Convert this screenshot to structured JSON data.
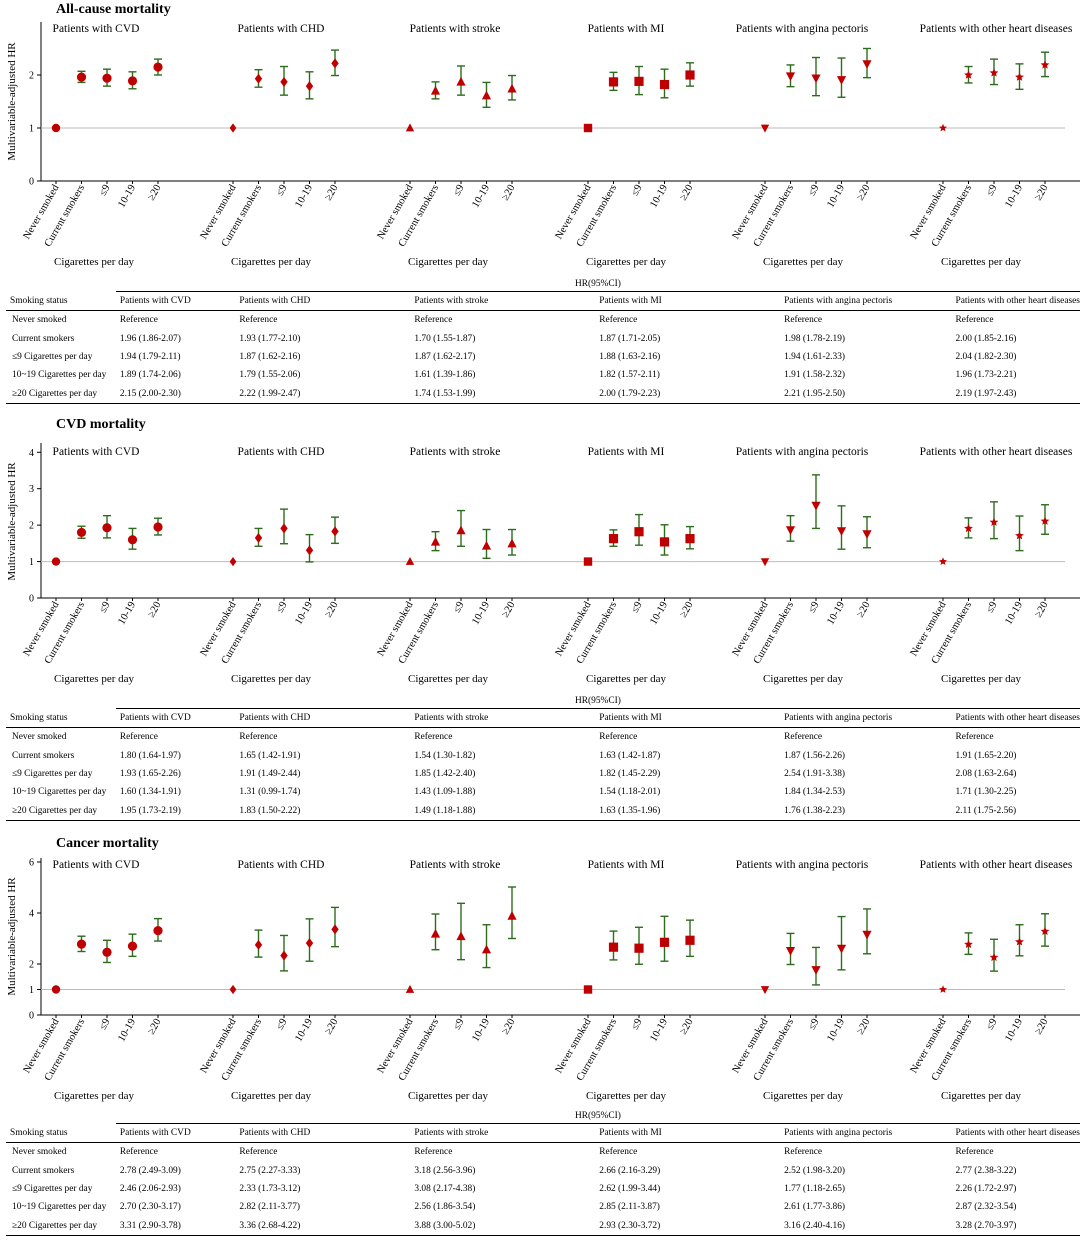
{
  "figure": {
    "y_axis_label": "Multivariable-adjusted HR",
    "x_axis_label": "Cigarettes per day",
    "table_super_header": "HR(95%CI)",
    "table_status_header": "Smoking status",
    "colors": {
      "marker": "#c00000",
      "errorbar": "#2e6b1e",
      "refline": "#bbbbbb",
      "axis": "#000000"
    }
  },
  "chart_data": [
    {
      "type": "scatter",
      "title": "All-cause mortality",
      "ylabel": "Multivariable-adjusted HR",
      "xlabel": "Cigarettes per day",
      "yticks": [
        0,
        1,
        2
      ],
      "categories": [
        "Never smoked",
        "Current smokers",
        "≤9",
        "10-19",
        "≥20"
      ],
      "series": [
        {
          "name": "Patients with CVD",
          "marker": "circle",
          "values": [
            1,
            1.96,
            1.94,
            1.89,
            2.15
          ],
          "lower": [
            1,
            1.86,
            1.79,
            1.74,
            2.0
          ],
          "upper": [
            1,
            2.07,
            2.11,
            2.06,
            2.3
          ]
        },
        {
          "name": "Patients with CHD",
          "marker": "diamond",
          "values": [
            1,
            1.93,
            1.87,
            1.79,
            2.22
          ],
          "lower": [
            1,
            1.77,
            1.62,
            1.55,
            1.99
          ],
          "upper": [
            1,
            2.1,
            2.16,
            2.06,
            2.47
          ]
        },
        {
          "name": "Patients with stroke",
          "marker": "triangle",
          "values": [
            1,
            1.7,
            1.87,
            1.61,
            1.74
          ],
          "lower": [
            1,
            1.55,
            1.62,
            1.39,
            1.53
          ],
          "upper": [
            1,
            1.87,
            2.17,
            1.86,
            1.99
          ]
        },
        {
          "name": "Patients with MI",
          "marker": "square",
          "values": [
            1,
            1.87,
            1.88,
            1.82,
            2.0
          ],
          "lower": [
            1,
            1.71,
            1.63,
            1.57,
            1.79
          ],
          "upper": [
            1,
            2.05,
            2.16,
            2.11,
            2.23
          ]
        },
        {
          "name": "Patients with angina pectoris",
          "marker": "triangle-down",
          "values": [
            1,
            1.98,
            1.94,
            1.91,
            2.21
          ],
          "lower": [
            1,
            1.78,
            1.61,
            1.58,
            1.95
          ],
          "upper": [
            1,
            2.19,
            2.33,
            2.32,
            2.5
          ]
        },
        {
          "name": "Patients with other heart diseases",
          "marker": "star",
          "values": [
            1,
            2.0,
            2.04,
            1.96,
            2.19
          ],
          "lower": [
            1,
            1.85,
            1.82,
            1.73,
            1.97
          ],
          "upper": [
            1,
            2.16,
            2.3,
            2.21,
            2.43
          ]
        }
      ]
    },
    {
      "type": "scatter",
      "title": "CVD mortality",
      "ylabel": "Multivariable-adjusted HR",
      "xlabel": "Cigarettes per day",
      "yticks": [
        0,
        1,
        2,
        3,
        4
      ],
      "categories": [
        "Never smoked",
        "Current smokers",
        "≤9",
        "10-19",
        "≥20"
      ],
      "series": [
        {
          "name": "Patients with CVD",
          "marker": "circle",
          "values": [
            1,
            1.8,
            1.93,
            1.6,
            1.95
          ],
          "lower": [
            1,
            1.64,
            1.65,
            1.34,
            1.73
          ],
          "upper": [
            1,
            1.97,
            2.26,
            1.91,
            2.19
          ]
        },
        {
          "name": "Patients with CHD",
          "marker": "diamond",
          "values": [
            1,
            1.65,
            1.91,
            1.31,
            1.83
          ],
          "lower": [
            1,
            1.42,
            1.49,
            0.99,
            1.5
          ],
          "upper": [
            1,
            1.91,
            2.44,
            1.74,
            2.22
          ]
        },
        {
          "name": "Patients with stroke",
          "marker": "triangle",
          "values": [
            1,
            1.54,
            1.85,
            1.43,
            1.49
          ],
          "lower": [
            1,
            1.3,
            1.42,
            1.09,
            1.18
          ],
          "upper": [
            1,
            1.82,
            2.4,
            1.88,
            1.88
          ]
        },
        {
          "name": "Patients with MI",
          "marker": "square",
          "values": [
            1,
            1.63,
            1.82,
            1.54,
            1.63
          ],
          "lower": [
            1,
            1.42,
            1.45,
            1.18,
            1.35
          ],
          "upper": [
            1,
            1.87,
            2.29,
            2.01,
            1.96
          ]
        },
        {
          "name": "Patients with angina pectoris",
          "marker": "triangle-down",
          "values": [
            1,
            1.87,
            2.54,
            1.84,
            1.76
          ],
          "lower": [
            1,
            1.56,
            1.91,
            1.34,
            1.38
          ],
          "upper": [
            1,
            2.26,
            3.38,
            2.53,
            2.23
          ]
        },
        {
          "name": "Patients with other heart diseases",
          "marker": "star",
          "values": [
            1,
            1.91,
            2.08,
            1.71,
            2.11
          ],
          "lower": [
            1,
            1.65,
            1.63,
            1.3,
            1.75
          ],
          "upper": [
            1,
            2.2,
            2.64,
            2.25,
            2.56
          ]
        }
      ]
    },
    {
      "type": "scatter",
      "title": "Cancer mortality",
      "ylabel": "Multivariable-adjusted HR",
      "xlabel": "Cigarettes per day",
      "yticks": [
        0,
        1,
        2,
        4,
        6
      ],
      "categories": [
        "Never smoked",
        "Current smokers",
        "≤9",
        "10-19",
        "≥20"
      ],
      "series": [
        {
          "name": "Patients with CVD",
          "marker": "circle",
          "values": [
            1,
            2.78,
            2.46,
            2.7,
            3.31
          ],
          "lower": [
            1,
            2.49,
            2.06,
            2.3,
            2.9
          ],
          "upper": [
            1,
            3.09,
            2.93,
            3.17,
            3.78
          ]
        },
        {
          "name": "Patients with CHD",
          "marker": "diamond",
          "values": [
            1,
            2.75,
            2.33,
            2.82,
            3.36
          ],
          "lower": [
            1,
            2.27,
            1.73,
            2.11,
            2.68
          ],
          "upper": [
            1,
            3.33,
            3.12,
            3.77,
            4.22
          ]
        },
        {
          "name": "Patients with stroke",
          "marker": "triangle",
          "values": [
            1,
            3.18,
            3.08,
            2.56,
            3.88
          ],
          "lower": [
            1,
            2.56,
            2.17,
            1.86,
            3.0
          ],
          "upper": [
            1,
            3.96,
            4.38,
            3.54,
            5.02
          ]
        },
        {
          "name": "Patients with MI",
          "marker": "square",
          "values": [
            1,
            2.66,
            2.62,
            2.85,
            2.93
          ],
          "lower": [
            1,
            2.16,
            1.99,
            2.11,
            2.3
          ],
          "upper": [
            1,
            3.29,
            3.44,
            3.87,
            3.72
          ]
        },
        {
          "name": "Patients with angina pectoris",
          "marker": "triangle-down",
          "values": [
            1,
            2.52,
            1.77,
            2.61,
            3.16
          ],
          "lower": [
            1,
            1.98,
            1.18,
            1.77,
            2.4
          ],
          "upper": [
            1,
            3.2,
            2.65,
            3.86,
            4.16
          ]
        },
        {
          "name": "Patients with other heart diseases",
          "marker": "star",
          "values": [
            1,
            2.77,
            2.26,
            2.87,
            3.28
          ],
          "lower": [
            1,
            2.38,
            1.72,
            2.32,
            2.7
          ],
          "upper": [
            1,
            3.22,
            2.97,
            3.54,
            3.97
          ]
        }
      ]
    }
  ],
  "tables": [
    {
      "columns": [
        "Patients with CVD",
        "Patients with CHD",
        "Patients with stroke",
        "Patients with MI",
        "Patients with angina pectoris",
        "Patients with other heart diseases"
      ],
      "rows": [
        {
          "label": "Never smoked",
          "cells": [
            "Reference",
            "Reference",
            "Reference",
            "Reference",
            "Reference",
            "Reference"
          ]
        },
        {
          "label": "Current smokers",
          "cells": [
            "1.96 (1.86-2.07)",
            "1.93 (1.77-2.10)",
            "1.70 (1.55-1.87)",
            "1.87 (1.71-2.05)",
            "1.98 (1.78-2.19)",
            "2.00 (1.85-2.16)"
          ]
        },
        {
          "label": "≤9 Cigarettes per day",
          "cells": [
            "1.94 (1.79-2.11)",
            "1.87 (1.62-2.16)",
            "1.87 (1.62-2.17)",
            "1.88 (1.63-2.16)",
            "1.94 (1.61-2.33)",
            "2.04 (1.82-2.30)"
          ]
        },
        {
          "label": "10~19 Cigarettes per day",
          "cells": [
            "1.89 (1.74-2.06)",
            "1.79 (1.55-2.06)",
            "1.61 (1.39-1.86)",
            "1.82 (1.57-2.11)",
            "1.91 (1.58-2.32)",
            "1.96 (1.73-2.21)"
          ]
        },
        {
          "label": "≥20 Cigarettes per day",
          "cells": [
            "2.15 (2.00-2.30)",
            "2.22 (1.99-2.47)",
            "1.74 (1.53-1.99)",
            "2.00 (1.79-2.23)",
            "2.21 (1.95-2.50)",
            "2.19 (1.97-2.43)"
          ]
        }
      ]
    },
    {
      "columns": [
        "Patients with CVD",
        "Patients with CHD",
        "Patients with stroke",
        "Patients with MI",
        "Patients with angina pectoris",
        "Patients with other heart diseases"
      ],
      "rows": [
        {
          "label": "Never smoked",
          "cells": [
            "Reference",
            "Reference",
            "Reference",
            "Reference",
            "Reference",
            "Reference"
          ]
        },
        {
          "label": "Current smokers",
          "cells": [
            "1.80 (1.64-1.97)",
            "1.65 (1.42-1.91)",
            "1.54 (1.30-1.82)",
            "1.63 (1.42-1.87)",
            "1.87 (1.56-2.26)",
            "1.91 (1.65-2.20)"
          ]
        },
        {
          "label": "≤9 Cigarettes per day",
          "cells": [
            "1.93 (1.65-2.26)",
            "1.91 (1.49-2.44)",
            "1.85 (1.42-2.40)",
            "1.82 (1.45-2.29)",
            "2.54 (1.91-3.38)",
            "2.08 (1.63-2.64)"
          ]
        },
        {
          "label": "10~19 Cigarettes per day",
          "cells": [
            "1.60 (1.34-1.91)",
            "1.31 (0.99-1.74)",
            "1.43 (1.09-1.88)",
            "1.54 (1.18-2.01)",
            "1.84 (1.34-2.53)",
            "1.71 (1.30-2.25)"
          ]
        },
        {
          "label": "≥20 Cigarettes per day",
          "cells": [
            "1.95 (1.73-2.19)",
            "1.83 (1.50-2.22)",
            "1.49 (1.18-1.88)",
            "1.63 (1.35-1.96)",
            "1.76 (1.38-2.23)",
            "2.11 (1.75-2.56)"
          ]
        }
      ]
    },
    {
      "columns": [
        "Patients with CVD",
        "Patients with CHD",
        "Patients with stroke",
        "Patients with MI",
        "Patients with angina pectoris",
        "Patients with other heart diseases"
      ],
      "rows": [
        {
          "label": "Never smoked",
          "cells": [
            "Reference",
            "Reference",
            "Reference",
            "Reference",
            "Reference",
            "Reference"
          ]
        },
        {
          "label": "Current smokers",
          "cells": [
            "2.78 (2.49-3.09)",
            "2.75 (2.27-3.33)",
            "3.18 (2.56-3.96)",
            "2.66 (2.16-3.29)",
            "2.52 (1.98-3.20)",
            "2.77 (2.38-3.22)"
          ]
        },
        {
          "label": "≤9 Cigarettes per day",
          "cells": [
            "2.46 (2.06-2.93)",
            "2.33 (1.73-3.12)",
            "3.08 (2.17-4.38)",
            "2.62 (1.99-3.44)",
            "1.77 (1.18-2.65)",
            "2.26 (1.72-2.97)"
          ]
        },
        {
          "label": "10~19 Cigarettes per day",
          "cells": [
            "2.70 (2.30-3.17)",
            "2.82 (2.11-3.77)",
            "2.56 (1.86-3.54)",
            "2.85 (2.11-3.87)",
            "2.61 (1.77-3.86)",
            "2.87 (2.32-3.54)"
          ]
        },
        {
          "label": "≥20 Cigarettes per day",
          "cells": [
            "3.31 (2.90-3.78)",
            "3.36 (2.68-4.22)",
            "3.88 (3.00-5.02)",
            "2.93 (2.30-3.72)",
            "3.16 (2.40-4.16)",
            "3.28 (2.70-3.97)"
          ]
        }
      ]
    }
  ]
}
